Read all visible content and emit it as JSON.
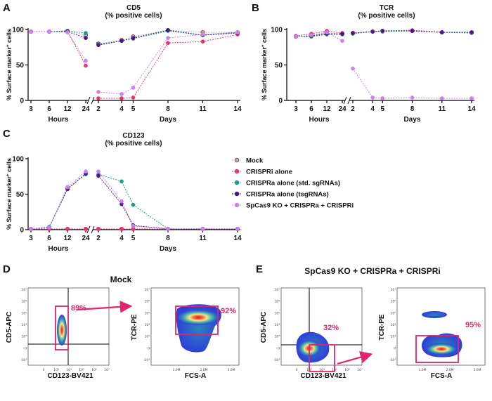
{
  "panels": [
    "A",
    "B",
    "C",
    "D",
    "E"
  ],
  "colors": {
    "mock": "#b7b7b7",
    "mock_edge": "#7a3b3b",
    "crispri": "#e8336f",
    "crispra_std": "#1b9b87",
    "crispra_tsg": "#4b1786",
    "spcas9": "#c983ee",
    "gate": "#e0246e"
  },
  "legend": [
    {
      "key": "mock",
      "label": "Mock"
    },
    {
      "key": "crispri",
      "label": "CRISPRi alone"
    },
    {
      "key": "crispra_std",
      "label": "CRISPRa alone (std. sgRNAs)"
    },
    {
      "key": "crispra_tsg",
      "label": "CRISPRa alone (tsgRNAs)"
    },
    {
      "key": "spcas9",
      "label": "SpCas9 KO + CRISPRa + CRISPRi"
    }
  ],
  "chart_data": [
    {
      "id": "A",
      "type": "line",
      "title_line1": "CD5",
      "title_line2": "(% positive cells)",
      "ylabel": "% Surface marker",
      "ylabel_sup": "+",
      "ylabel_tail": " cells",
      "ylim": [
        0,
        100
      ],
      "yticks": [
        "0",
        "50",
        "100"
      ],
      "hours": {
        "label": "Hours",
        "ticks": [
          "3",
          "6",
          "12",
          "24"
        ],
        "x": [
          3,
          6,
          12,
          24
        ]
      },
      "days": {
        "label": "Days",
        "ticks": [
          "2",
          "4",
          "5",
          "8",
          "11",
          "14"
        ],
        "x": [
          2,
          4,
          5,
          8,
          11,
          14
        ]
      },
      "series": [
        {
          "key": "mock",
          "hours": [
            97,
            97,
            98,
            92
          ],
          "days": [
            80,
            85,
            90,
            99,
            96,
            96
          ]
        },
        {
          "key": "crispri",
          "hours": [
            97,
            97,
            98,
            49
          ],
          "days": [
            3,
            3,
            4,
            81,
            83,
            93
          ]
        },
        {
          "key": "crispra_std",
          "hours": [
            97,
            97,
            98,
            95
          ],
          "days": [
            79,
            84,
            87,
            98,
            92,
            96
          ]
        },
        {
          "key": "crispra_tsg",
          "hours": [
            97,
            97,
            97,
            88
          ],
          "days": [
            78,
            84,
            88,
            99,
            92,
            95
          ]
        },
        {
          "key": "spcas9",
          "hours": [
            97,
            97,
            96,
            56
          ],
          "days": [
            12,
            9,
            18,
            88,
            93,
            96
          ]
        }
      ]
    },
    {
      "id": "B",
      "type": "line",
      "title_line1": "TCR",
      "title_line2": "(% positive cells)",
      "ylabel": "% Surface marker",
      "ylabel_sup": "+",
      "ylabel_tail": " cells",
      "ylim": [
        0,
        100
      ],
      "yticks": [
        "0",
        "50",
        "100"
      ],
      "hours": {
        "label": "Hours",
        "ticks": [
          "3",
          "6",
          "12",
          "24"
        ],
        "x": [
          3,
          6,
          12,
          24
        ]
      },
      "days": {
        "label": "Days",
        "ticks": [
          "2",
          "4",
          "5",
          "8",
          "11",
          "14"
        ],
        "x": [
          2,
          4,
          5,
          8,
          11,
          14
        ]
      },
      "series": [
        {
          "key": "mock",
          "hours": [
            90,
            91,
            95,
            94
          ],
          "days": [
            95,
            97,
            98,
            98,
            96,
            96
          ]
        },
        {
          "key": "crispri",
          "hours": [
            91,
            94,
            98,
            95
          ],
          "days": [
            95,
            97,
            98,
            99,
            96,
            96
          ]
        },
        {
          "key": "crispra_std",
          "hours": [
            90,
            90,
            93,
            93
          ],
          "days": [
            94,
            97,
            97,
            98,
            96,
            95
          ]
        },
        {
          "key": "crispra_tsg",
          "hours": [
            90,
            91,
            94,
            94
          ],
          "days": [
            95,
            97,
            98,
            98,
            96,
            96
          ]
        },
        {
          "key": "spcas9",
          "hours": [
            90,
            92,
            96,
            84
          ],
          "days": [
            45,
            4,
            3,
            4,
            3,
            3
          ]
        }
      ]
    },
    {
      "id": "C",
      "type": "line",
      "title_line1": "CD123",
      "title_line2": "(% positive cells)",
      "ylabel": "% Surface marker",
      "ylabel_sup": "+",
      "ylabel_tail": " cells",
      "ylim": [
        0,
        100
      ],
      "yticks": [
        "0",
        "50",
        "100"
      ],
      "hours": {
        "label": "Hours",
        "ticks": [
          "3",
          "6",
          "12",
          "24"
        ],
        "x": [
          3,
          6,
          12,
          24
        ]
      },
      "days": {
        "label": "Days",
        "ticks": [
          "2",
          "4",
          "5",
          "8",
          "11",
          "14"
        ],
        "x": [
          2,
          4,
          5,
          8,
          11,
          14
        ]
      },
      "series": [
        {
          "key": "mock",
          "hours": [
            1,
            1,
            1,
            1
          ],
          "days": [
            1,
            1,
            1,
            1,
            1,
            1
          ]
        },
        {
          "key": "crispri",
          "hours": [
            1,
            1,
            1,
            1
          ],
          "days": [
            1,
            1,
            1,
            1,
            1,
            1
          ]
        },
        {
          "key": "crispra_std",
          "hours": [
            1,
            4,
            58,
            78
          ],
          "days": [
            78,
            68,
            35,
            1,
            1,
            1
          ]
        },
        {
          "key": "crispra_tsg",
          "hours": [
            1,
            3,
            57,
            79
          ],
          "days": [
            76,
            36,
            6,
            1,
            1,
            1
          ]
        },
        {
          "key": "spcas9",
          "hours": [
            1,
            3,
            60,
            82
          ],
          "days": [
            82,
            40,
            5,
            1,
            1,
            1
          ]
        }
      ]
    }
  ],
  "flow": {
    "D": {
      "title": "Mock",
      "plot1": {
        "xlabel": "CD123-BV421",
        "ylabel": "CD5-APC",
        "gate": "89%"
      },
      "plot2": {
        "xlabel": "FCS-A",
        "ylabel": "TCR-PE",
        "gate": "92%",
        "xticks": [
          "1.0M",
          "2.0M",
          "3.0M"
        ]
      }
    },
    "E": {
      "title": "SpCas9 KO + CRISPRa + CRISPRi",
      "plot1": {
        "xlabel": "CD123-BV421",
        "ylabel": "CD5-APC",
        "gate": "32%"
      },
      "plot2": {
        "xlabel": "FCS-A",
        "ylabel": "TCR-PE",
        "gate": "95%",
        "xticks": [
          "1.0M",
          "2.0M",
          "3.0M"
        ]
      }
    },
    "log_ticks_y": [
      "-10³",
      "0",
      "10³",
      "10⁴",
      "10⁵",
      "10⁶",
      "10⁷"
    ],
    "log_ticks_x": [
      "0",
      "10³",
      "10⁴",
      "10⁵",
      "10⁶",
      "10⁷"
    ]
  }
}
